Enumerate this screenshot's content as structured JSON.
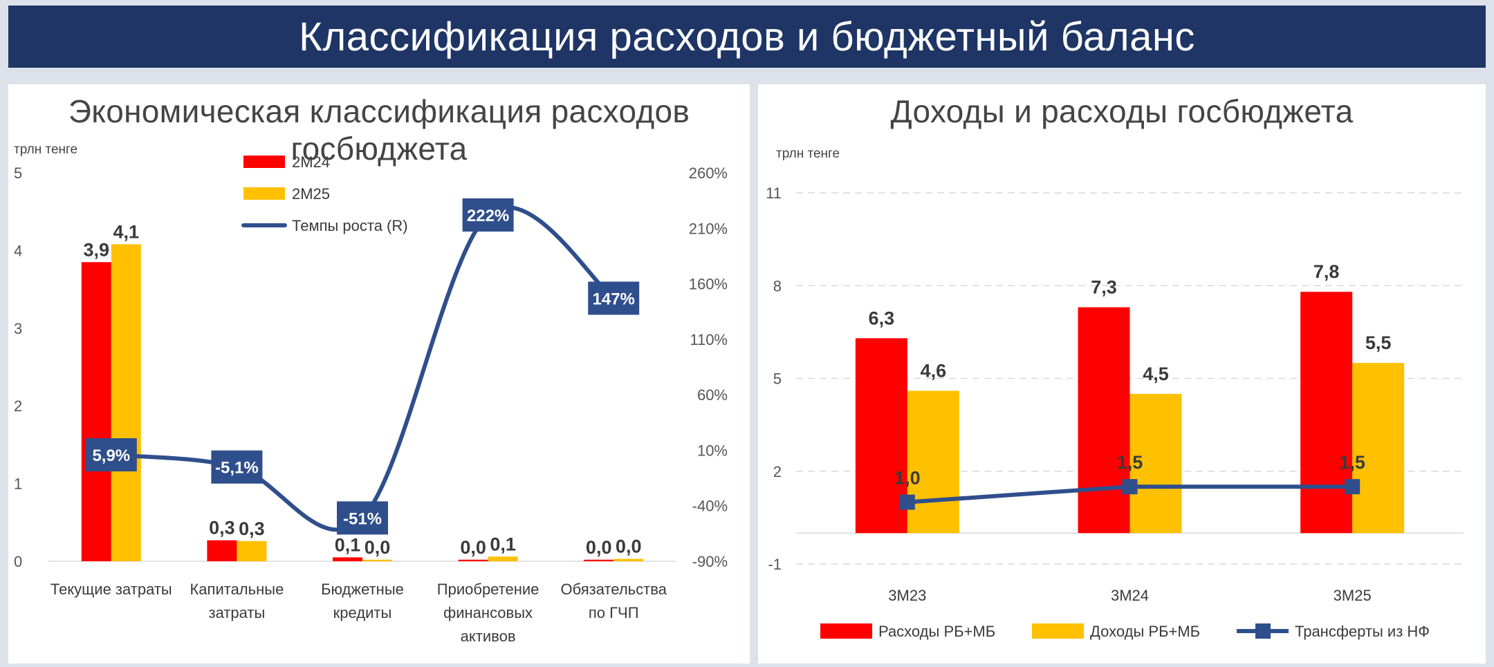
{
  "page": {
    "title": "Классификация расходов и бюджетный баланс"
  },
  "colors": {
    "header_bg": "#1e3565",
    "red": "#ff0000",
    "yellow": "#ffc000",
    "line": "#2f4e8c",
    "label_box": "#2f4e8c"
  },
  "left": {
    "title": "Экономическая классификация расходов госбюджета",
    "unit": "трлн тенге"
  },
  "right": {
    "title": "Доходы и расходы госбюджета",
    "unit": "трлн тенге"
  },
  "chart_data": [
    {
      "type": "bar",
      "title": "Экономическая классификация расходов госбюджета",
      "ylabel": "трлн тенге",
      "categories": [
        [
          "Текущие затраты"
        ],
        [
          "Капитальные",
          "затраты"
        ],
        [
          "Бюджетные",
          "кредиты"
        ],
        [
          "Приобретение",
          "финансовых",
          "активов"
        ],
        [
          "Обязательства",
          "по ГЧП"
        ]
      ],
      "series": [
        {
          "name": "2М24",
          "values": [
            3.85,
            0.27,
            0.05,
            0.02,
            0.02
          ],
          "labels": [
            "3,9",
            "0,3",
            "0,1",
            "0,0",
            "0,0"
          ],
          "color": "#ff0000"
        },
        {
          "name": "2М25",
          "values": [
            4.08,
            0.26,
            0.02,
            0.06,
            0.03
          ],
          "labels": [
            "4,1",
            "0,3",
            "0,0",
            "0,1",
            "0,0"
          ],
          "color": "#ffc000"
        }
      ],
      "line_series": {
        "name": "Темпы роста (R)",
        "axis": "right",
        "values": [
          5.9,
          -5.1,
          -51,
          222,
          147
        ],
        "labels": [
          "5,9%",
          "-5,1%",
          "-51%",
          "222%",
          "147%"
        ],
        "color": "#2f4e8c"
      },
      "ylim": [
        0,
        5
      ],
      "yticks": [
        "0",
        "1",
        "2",
        "3",
        "4",
        "5"
      ],
      "y2lim": [
        -90,
        260
      ],
      "y2ticks": [
        "-90%",
        "-40%",
        "10%",
        "60%",
        "110%",
        "160%",
        "210%",
        "260%"
      ],
      "legend": "top-center"
    },
    {
      "type": "bar",
      "title": "Доходы и расходы госбюджета",
      "ylabel": "трлн тенге",
      "categories": [
        "3М23",
        "3М24",
        "3М25"
      ],
      "series": [
        {
          "name": "Расходы РБ+МБ",
          "values": [
            6.3,
            7.3,
            7.8
          ],
          "labels": [
            "6,3",
            "7,3",
            "7,8"
          ],
          "color": "#ff0000"
        },
        {
          "name": "Доходы РБ+МБ",
          "values": [
            4.6,
            4.5,
            5.5
          ],
          "labels": [
            "4,6",
            "4,5",
            "5,5"
          ],
          "color": "#ffc000"
        }
      ],
      "line_series": {
        "name": "Трансферты из НФ",
        "values": [
          1.0,
          1.5,
          1.5
        ],
        "labels": [
          "1,0",
          "1,5",
          "1,5"
        ],
        "color": "#2f4e8c"
      },
      "ylim": [
        -1,
        11
      ],
      "yticks": [
        "-1",
        "2",
        "5",
        "8",
        "11"
      ],
      "grid": true,
      "legend": "bottom"
    }
  ]
}
